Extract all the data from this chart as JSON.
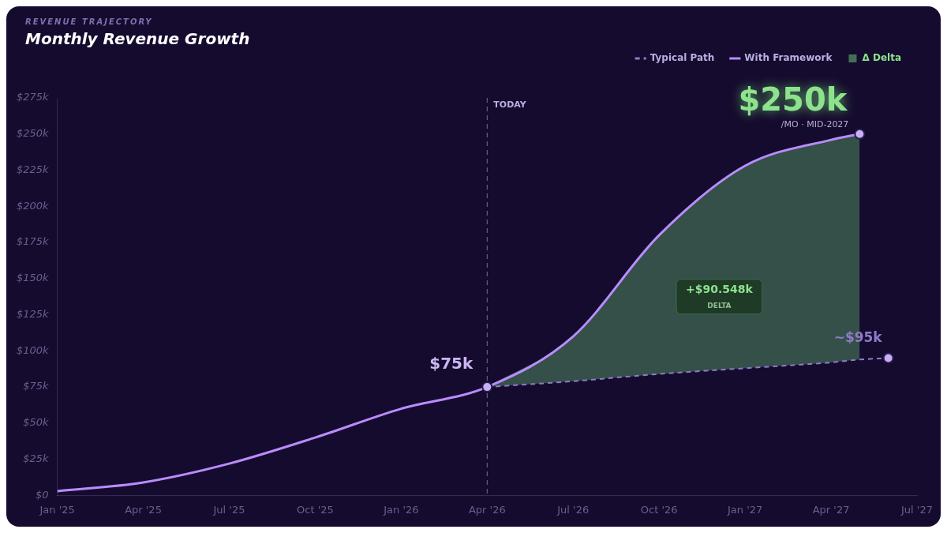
{
  "chart_data": {
    "type": "line",
    "subtitle": "REVENUE TRAJECTORY",
    "title": "Monthly Revenue Growth",
    "series": [
      {
        "name": "Typical Path",
        "line_style": "dashed",
        "color": "#8f7ac8",
        "x": [
          "2026-04",
          "2026-07",
          "2026-10",
          "2027-01",
          "2027-04",
          "2027-05",
          "2027-06"
        ],
        "values": [
          75,
          79,
          84,
          88,
          92,
          94,
          95
        ]
      },
      {
        "name": "With Framework",
        "line_style": "solid",
        "color": "#b98cff",
        "x": [
          "2025-01",
          "2025-04",
          "2025-07",
          "2025-10",
          "2026-01",
          "2026-04",
          "2026-07",
          "2026-10",
          "2027-01",
          "2027-04",
          "2027-05"
        ],
        "values": [
          3,
          9,
          22,
          40,
          60,
          75,
          110,
          180,
          228,
          246,
          250
        ]
      },
      {
        "name": "Δ Delta",
        "type": "area",
        "color": "#4f8a5e",
        "x": [
          "2026-04",
          "2026-07",
          "2026-10",
          "2027-01",
          "2027-04",
          "2027-05"
        ],
        "values": [
          75,
          110,
          180,
          228,
          246,
          250
        ]
      }
    ],
    "xlim": [
      "2025-01",
      "2027-07"
    ],
    "xticks": [
      {
        "value": "2025-01",
        "label": "Jan '25"
      },
      {
        "value": "2025-04",
        "label": "Apr '25"
      },
      {
        "value": "2025-07",
        "label": "Jul '25"
      },
      {
        "value": "2025-10",
        "label": "Oct '25"
      },
      {
        "value": "2026-01",
        "label": "Jan '26"
      },
      {
        "value": "2026-04",
        "label": "Apr '26"
      },
      {
        "value": "2026-07",
        "label": "Jul '26"
      },
      {
        "value": "2026-10",
        "label": "Oct '26"
      },
      {
        "value": "2027-01",
        "label": "Jan '27"
      },
      {
        "value": "2027-04",
        "label": "Apr '27"
      },
      {
        "value": "2027-07",
        "label": "Jul '27"
      }
    ],
    "ylim": [
      0,
      275
    ],
    "yticks": [
      {
        "value": 0,
        "label": "$0"
      },
      {
        "value": 25,
        "label": "$25k"
      },
      {
        "value": 50,
        "label": "$50k"
      },
      {
        "value": 75,
        "label": "$75k"
      },
      {
        "value": 100,
        "label": "$100k"
      },
      {
        "value": 125,
        "label": "$125k"
      },
      {
        "value": 150,
        "label": "$150k"
      },
      {
        "value": 175,
        "label": "$175k"
      },
      {
        "value": 200,
        "label": "$200k"
      },
      {
        "value": 225,
        "label": "$225k"
      },
      {
        "value": 250,
        "label": "$250k"
      },
      {
        "value": 275,
        "label": "$275k"
      }
    ],
    "grid": false,
    "legend": "top right",
    "ref_lines": [
      {
        "axis": "x",
        "value": "2026-04",
        "label": "TODAY",
        "line_style": "dashed"
      }
    ],
    "annotations": [
      {
        "text": "$75k",
        "x": "2026-04",
        "y": 75
      },
      {
        "text": "$250k",
        "x": "2027-05",
        "y": 250
      },
      {
        "text": "/MO · MID-2027",
        "x": "2027-05",
        "y": 250
      },
      {
        "text": "~$95k",
        "x": "2027-06",
        "y": 95
      },
      "+$90.548k\nDELTA"
    ]
  }
}
